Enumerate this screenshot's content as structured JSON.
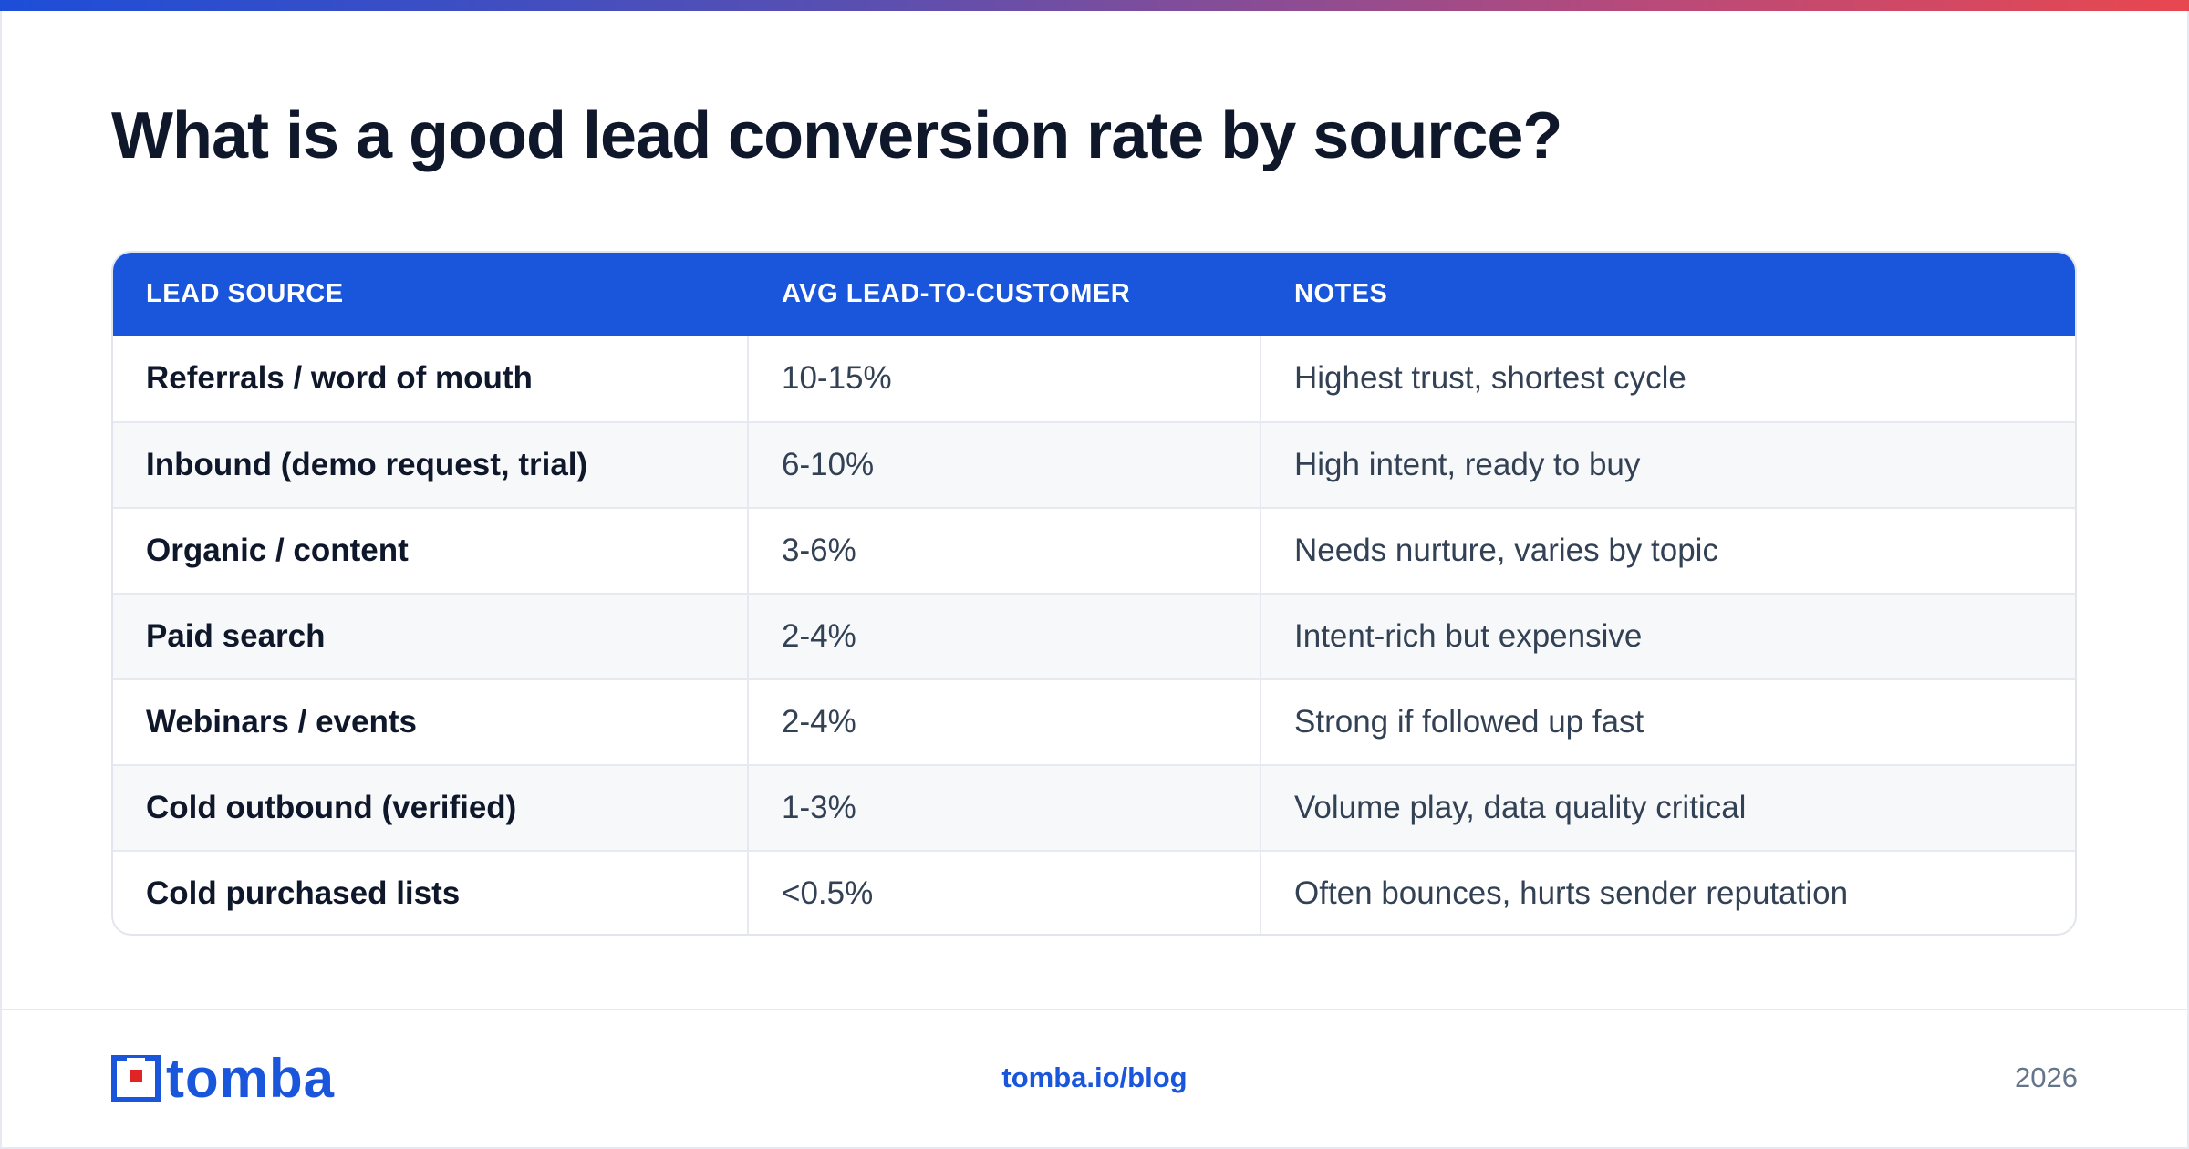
{
  "title": "What is a good lead conversion rate by source?",
  "table": {
    "headers": [
      "LEAD SOURCE",
      "AVG LEAD-TO-CUSTOMER",
      "NOTES"
    ],
    "rows": [
      {
        "source": "Referrals / word of mouth",
        "rate": "10-15%",
        "notes": "Highest trust, shortest cycle"
      },
      {
        "source": "Inbound (demo request, trial)",
        "rate": "6-10%",
        "notes": "High intent, ready to buy"
      },
      {
        "source": "Organic / content",
        "rate": "3-6%",
        "notes": "Needs nurture, varies by topic"
      },
      {
        "source": "Paid search",
        "rate": "2-4%",
        "notes": "Intent-rich but expensive"
      },
      {
        "source": "Webinars / events",
        "rate": "2-4%",
        "notes": "Strong if followed up fast"
      },
      {
        "source": "Cold outbound (verified)",
        "rate": "1-3%",
        "notes": "Volume play, data quality critical"
      },
      {
        "source": "Cold purchased lists",
        "rate": "<0.5%",
        "notes": "Often bounces, hurts sender reputation"
      }
    ]
  },
  "footer": {
    "logo_text": "tomba",
    "url": "tomba.io/blog",
    "year": "2026"
  },
  "colors": {
    "accent": "#1a56db",
    "heading": "#0f172a",
    "text": "#334155",
    "muted": "#64748b",
    "logo_red": "#e02424"
  }
}
